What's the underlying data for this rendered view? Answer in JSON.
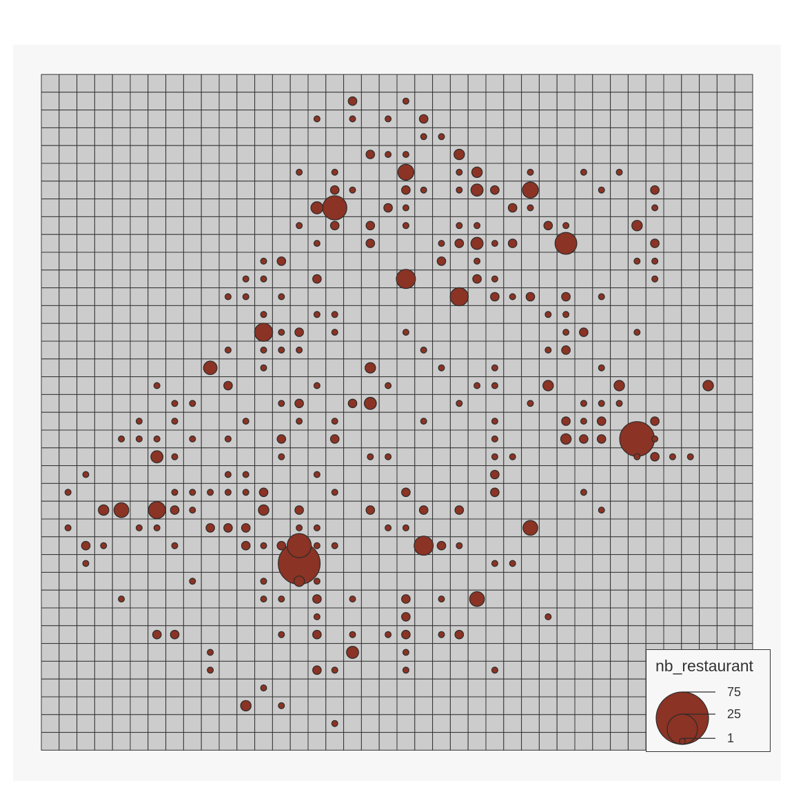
{
  "map": {
    "grid_cols": 40,
    "grid_rows": 38,
    "colors": {
      "panel": "#f7f7f7",
      "cell_fill": "#cccccc",
      "cell_stroke": "#333333",
      "symbol_fill": "#8b3324",
      "symbol_stroke": "#2b2b2b"
    },
    "legend": {
      "title": "nb_restaurant",
      "values": [
        75,
        25,
        1
      ],
      "labels": [
        "75",
        "25",
        "1"
      ]
    },
    "symbols": [
      {
        "col": 17,
        "row": 1,
        "value": 2
      },
      {
        "col": 20,
        "row": 1,
        "value": 1
      },
      {
        "col": 15,
        "row": 2,
        "value": 1
      },
      {
        "col": 17,
        "row": 2,
        "value": 1
      },
      {
        "col": 19,
        "row": 2,
        "value": 1
      },
      {
        "col": 21,
        "row": 2,
        "value": 2
      },
      {
        "col": 21,
        "row": 3,
        "value": 1
      },
      {
        "col": 22,
        "row": 3,
        "value": 1
      },
      {
        "col": 18,
        "row": 4,
        "value": 2
      },
      {
        "col": 19,
        "row": 4,
        "value": 1
      },
      {
        "col": 20,
        "row": 4,
        "value": 1
      },
      {
        "col": 23,
        "row": 4,
        "value": 3
      },
      {
        "col": 14,
        "row": 5,
        "value": 1
      },
      {
        "col": 16,
        "row": 5,
        "value": 1
      },
      {
        "col": 20,
        "row": 5,
        "value": 7
      },
      {
        "col": 23,
        "row": 5,
        "value": 1
      },
      {
        "col": 24,
        "row": 5,
        "value": 3
      },
      {
        "col": 27,
        "row": 5,
        "value": 1
      },
      {
        "col": 30,
        "row": 5,
        "value": 1
      },
      {
        "col": 32,
        "row": 5,
        "value": 1
      },
      {
        "col": 16,
        "row": 6,
        "value": 2
      },
      {
        "col": 17,
        "row": 6,
        "value": 1
      },
      {
        "col": 20,
        "row": 6,
        "value": 2
      },
      {
        "col": 21,
        "row": 6,
        "value": 1
      },
      {
        "col": 23,
        "row": 6,
        "value": 1
      },
      {
        "col": 24,
        "row": 6,
        "value": 4
      },
      {
        "col": 25,
        "row": 6,
        "value": 2
      },
      {
        "col": 27,
        "row": 6,
        "value": 7
      },
      {
        "col": 31,
        "row": 6,
        "value": 1
      },
      {
        "col": 34,
        "row": 6,
        "value": 2
      },
      {
        "col": 15,
        "row": 7,
        "value": 4
      },
      {
        "col": 16,
        "row": 7,
        "value": 16
      },
      {
        "col": 19,
        "row": 7,
        "value": 2
      },
      {
        "col": 20,
        "row": 7,
        "value": 1
      },
      {
        "col": 26,
        "row": 7,
        "value": 2
      },
      {
        "col": 27,
        "row": 7,
        "value": 1
      },
      {
        "col": 34,
        "row": 7,
        "value": 1
      },
      {
        "col": 14,
        "row": 8,
        "value": 1
      },
      {
        "col": 16,
        "row": 8,
        "value": 2
      },
      {
        "col": 18,
        "row": 8,
        "value": 2
      },
      {
        "col": 20,
        "row": 8,
        "value": 1
      },
      {
        "col": 23,
        "row": 8,
        "value": 1
      },
      {
        "col": 24,
        "row": 8,
        "value": 1
      },
      {
        "col": 28,
        "row": 8,
        "value": 2
      },
      {
        "col": 29,
        "row": 8,
        "value": 1
      },
      {
        "col": 33,
        "row": 8,
        "value": 3
      },
      {
        "col": 15,
        "row": 9,
        "value": 1
      },
      {
        "col": 18,
        "row": 9,
        "value": 2
      },
      {
        "col": 22,
        "row": 9,
        "value": 1
      },
      {
        "col": 23,
        "row": 9,
        "value": 2
      },
      {
        "col": 24,
        "row": 9,
        "value": 4
      },
      {
        "col": 25,
        "row": 9,
        "value": 1
      },
      {
        "col": 26,
        "row": 9,
        "value": 2
      },
      {
        "col": 29,
        "row": 9,
        "value": 13
      },
      {
        "col": 34,
        "row": 9,
        "value": 2
      },
      {
        "col": 12,
        "row": 10,
        "value": 1
      },
      {
        "col": 13,
        "row": 10,
        "value": 2
      },
      {
        "col": 22,
        "row": 10,
        "value": 2
      },
      {
        "col": 24,
        "row": 10,
        "value": 1
      },
      {
        "col": 33,
        "row": 10,
        "value": 1
      },
      {
        "col": 34,
        "row": 10,
        "value": 1
      },
      {
        "col": 11,
        "row": 11,
        "value": 1
      },
      {
        "col": 12,
        "row": 11,
        "value": 1
      },
      {
        "col": 15,
        "row": 11,
        "value": 2
      },
      {
        "col": 20,
        "row": 11,
        "value": 10
      },
      {
        "col": 24,
        "row": 11,
        "value": 2
      },
      {
        "col": 25,
        "row": 11,
        "value": 1
      },
      {
        "col": 34,
        "row": 11,
        "value": 1
      },
      {
        "col": 10,
        "row": 12,
        "value": 1
      },
      {
        "col": 11,
        "row": 12,
        "value": 1
      },
      {
        "col": 13,
        "row": 12,
        "value": 1
      },
      {
        "col": 23,
        "row": 12,
        "value": 9
      },
      {
        "col": 25,
        "row": 12,
        "value": 2
      },
      {
        "col": 26,
        "row": 12,
        "value": 1
      },
      {
        "col": 27,
        "row": 12,
        "value": 2
      },
      {
        "col": 29,
        "row": 12,
        "value": 2
      },
      {
        "col": 31,
        "row": 12,
        "value": 1
      },
      {
        "col": 12,
        "row": 13,
        "value": 1
      },
      {
        "col": 15,
        "row": 13,
        "value": 1
      },
      {
        "col": 16,
        "row": 13,
        "value": 1
      },
      {
        "col": 28,
        "row": 13,
        "value": 1
      },
      {
        "col": 29,
        "row": 13,
        "value": 1
      },
      {
        "col": 12,
        "row": 14,
        "value": 9
      },
      {
        "col": 13,
        "row": 14,
        "value": 1
      },
      {
        "col": 14,
        "row": 14,
        "value": 2
      },
      {
        "col": 16,
        "row": 14,
        "value": 1
      },
      {
        "col": 20,
        "row": 14,
        "value": 1
      },
      {
        "col": 29,
        "row": 14,
        "value": 1
      },
      {
        "col": 30,
        "row": 14,
        "value": 2
      },
      {
        "col": 33,
        "row": 14,
        "value": 1
      },
      {
        "col": 10,
        "row": 15,
        "value": 1
      },
      {
        "col": 12,
        "row": 15,
        "value": 1
      },
      {
        "col": 13,
        "row": 15,
        "value": 1
      },
      {
        "col": 14,
        "row": 15,
        "value": 1
      },
      {
        "col": 21,
        "row": 15,
        "value": 1
      },
      {
        "col": 28,
        "row": 15,
        "value": 1
      },
      {
        "col": 29,
        "row": 15,
        "value": 2
      },
      {
        "col": 9,
        "row": 16,
        "value": 5
      },
      {
        "col": 12,
        "row": 16,
        "value": 1
      },
      {
        "col": 18,
        "row": 16,
        "value": 3
      },
      {
        "col": 22,
        "row": 16,
        "value": 1
      },
      {
        "col": 25,
        "row": 16,
        "value": 1
      },
      {
        "col": 31,
        "row": 16,
        "value": 1
      },
      {
        "col": 6,
        "row": 17,
        "value": 1
      },
      {
        "col": 10,
        "row": 17,
        "value": 2
      },
      {
        "col": 15,
        "row": 17,
        "value": 1
      },
      {
        "col": 19,
        "row": 17,
        "value": 1
      },
      {
        "col": 24,
        "row": 17,
        "value": 1
      },
      {
        "col": 25,
        "row": 17,
        "value": 1
      },
      {
        "col": 28,
        "row": 17,
        "value": 3
      },
      {
        "col": 32,
        "row": 17,
        "value": 3
      },
      {
        "col": 37,
        "row": 17,
        "value": 3
      },
      {
        "col": 7,
        "row": 18,
        "value": 1
      },
      {
        "col": 8,
        "row": 18,
        "value": 1
      },
      {
        "col": 13,
        "row": 18,
        "value": 1
      },
      {
        "col": 14,
        "row": 18,
        "value": 2
      },
      {
        "col": 17,
        "row": 18,
        "value": 2
      },
      {
        "col": 18,
        "row": 18,
        "value": 4
      },
      {
        "col": 23,
        "row": 18,
        "value": 1
      },
      {
        "col": 27,
        "row": 18,
        "value": 1
      },
      {
        "col": 30,
        "row": 18,
        "value": 1
      },
      {
        "col": 31,
        "row": 18,
        "value": 1
      },
      {
        "col": 32,
        "row": 18,
        "value": 1
      },
      {
        "col": 5,
        "row": 19,
        "value": 1
      },
      {
        "col": 7,
        "row": 19,
        "value": 1
      },
      {
        "col": 11,
        "row": 19,
        "value": 1
      },
      {
        "col": 14,
        "row": 19,
        "value": 1
      },
      {
        "col": 16,
        "row": 19,
        "value": 1
      },
      {
        "col": 21,
        "row": 19,
        "value": 1
      },
      {
        "col": 25,
        "row": 19,
        "value": 1
      },
      {
        "col": 29,
        "row": 19,
        "value": 2
      },
      {
        "col": 30,
        "row": 19,
        "value": 1
      },
      {
        "col": 31,
        "row": 19,
        "value": 2
      },
      {
        "col": 34,
        "row": 19,
        "value": 2
      },
      {
        "col": 4,
        "row": 20,
        "value": 1
      },
      {
        "col": 5,
        "row": 20,
        "value": 1
      },
      {
        "col": 6,
        "row": 20,
        "value": 1
      },
      {
        "col": 8,
        "row": 20,
        "value": 1
      },
      {
        "col": 10,
        "row": 20,
        "value": 1
      },
      {
        "col": 13,
        "row": 20,
        "value": 2
      },
      {
        "col": 16,
        "row": 20,
        "value": 2
      },
      {
        "col": 25,
        "row": 20,
        "value": 1
      },
      {
        "col": 29,
        "row": 20,
        "value": 3
      },
      {
        "col": 30,
        "row": 20,
        "value": 2
      },
      {
        "col": 31,
        "row": 20,
        "value": 2
      },
      {
        "col": 33,
        "row": 20,
        "value": 33
      },
      {
        "col": 34,
        "row": 20,
        "value": 1
      },
      {
        "col": 6,
        "row": 21,
        "value": 4
      },
      {
        "col": 7,
        "row": 21,
        "value": 1
      },
      {
        "col": 13,
        "row": 21,
        "value": 1
      },
      {
        "col": 18,
        "row": 21,
        "value": 1
      },
      {
        "col": 19,
        "row": 21,
        "value": 1
      },
      {
        "col": 25,
        "row": 21,
        "value": 1
      },
      {
        "col": 26,
        "row": 21,
        "value": 1
      },
      {
        "col": 33,
        "row": 21,
        "value": 1
      },
      {
        "col": 34,
        "row": 21,
        "value": 2
      },
      {
        "col": 35,
        "row": 21,
        "value": 1
      },
      {
        "col": 36,
        "row": 21,
        "value": 1
      },
      {
        "col": 2,
        "row": 22,
        "value": 1
      },
      {
        "col": 10,
        "row": 22,
        "value": 1
      },
      {
        "col": 11,
        "row": 22,
        "value": 1
      },
      {
        "col": 15,
        "row": 22,
        "value": 1
      },
      {
        "col": 25,
        "row": 22,
        "value": 2
      },
      {
        "col": 1,
        "row": 23,
        "value": 1
      },
      {
        "col": 7,
        "row": 23,
        "value": 1
      },
      {
        "col": 8,
        "row": 23,
        "value": 1
      },
      {
        "col": 9,
        "row": 23,
        "value": 1
      },
      {
        "col": 10,
        "row": 23,
        "value": 1
      },
      {
        "col": 11,
        "row": 23,
        "value": 1
      },
      {
        "col": 12,
        "row": 23,
        "value": 2
      },
      {
        "col": 16,
        "row": 23,
        "value": 1
      },
      {
        "col": 20,
        "row": 23,
        "value": 2
      },
      {
        "col": 25,
        "row": 23,
        "value": 2
      },
      {
        "col": 30,
        "row": 23,
        "value": 1
      },
      {
        "col": 3,
        "row": 24,
        "value": 3
      },
      {
        "col": 4,
        "row": 24,
        "value": 6
      },
      {
        "col": 6,
        "row": 24,
        "value": 8
      },
      {
        "col": 7,
        "row": 24,
        "value": 2
      },
      {
        "col": 8,
        "row": 24,
        "value": 1
      },
      {
        "col": 12,
        "row": 24,
        "value": 3
      },
      {
        "col": 14,
        "row": 24,
        "value": 2
      },
      {
        "col": 18,
        "row": 24,
        "value": 2
      },
      {
        "col": 21,
        "row": 24,
        "value": 2
      },
      {
        "col": 23,
        "row": 24,
        "value": 2
      },
      {
        "col": 31,
        "row": 24,
        "value": 1
      },
      {
        "col": 1,
        "row": 25,
        "value": 1
      },
      {
        "col": 5,
        "row": 25,
        "value": 1
      },
      {
        "col": 6,
        "row": 25,
        "value": 1
      },
      {
        "col": 9,
        "row": 25,
        "value": 2
      },
      {
        "col": 10,
        "row": 25,
        "value": 2
      },
      {
        "col": 11,
        "row": 25,
        "value": 2
      },
      {
        "col": 14,
        "row": 25,
        "value": 1
      },
      {
        "col": 15,
        "row": 25,
        "value": 1
      },
      {
        "col": 19,
        "row": 25,
        "value": 1
      },
      {
        "col": 20,
        "row": 25,
        "value": 1
      },
      {
        "col": 27,
        "row": 25,
        "value": 6
      },
      {
        "col": 2,
        "row": 26,
        "value": 2
      },
      {
        "col": 3,
        "row": 26,
        "value": 1
      },
      {
        "col": 7,
        "row": 26,
        "value": 1
      },
      {
        "col": 11,
        "row": 26,
        "value": 2
      },
      {
        "col": 12,
        "row": 26,
        "value": 1
      },
      {
        "col": 13,
        "row": 26,
        "value": 2
      },
      {
        "col": 14,
        "row": 26,
        "value": 16
      },
      {
        "col": 15,
        "row": 26,
        "value": 1
      },
      {
        "col": 16,
        "row": 26,
        "value": 1
      },
      {
        "col": 21,
        "row": 26,
        "value": 10
      },
      {
        "col": 22,
        "row": 26,
        "value": 2
      },
      {
        "col": 23,
        "row": 26,
        "value": 1
      },
      {
        "col": 2,
        "row": 27,
        "value": 1
      },
      {
        "col": 14,
        "row": 27,
        "value": 48
      },
      {
        "col": 25,
        "row": 27,
        "value": 1
      },
      {
        "col": 26,
        "row": 27,
        "value": 1
      },
      {
        "col": 8,
        "row": 28,
        "value": 1
      },
      {
        "col": 12,
        "row": 28,
        "value": 1
      },
      {
        "col": 14,
        "row": 28,
        "value": 3
      },
      {
        "col": 15,
        "row": 28,
        "value": 1
      },
      {
        "col": 4,
        "row": 29,
        "value": 1
      },
      {
        "col": 12,
        "row": 29,
        "value": 1
      },
      {
        "col": 13,
        "row": 29,
        "value": 1
      },
      {
        "col": 15,
        "row": 29,
        "value": 2
      },
      {
        "col": 17,
        "row": 29,
        "value": 1
      },
      {
        "col": 20,
        "row": 29,
        "value": 2
      },
      {
        "col": 22,
        "row": 29,
        "value": 1
      },
      {
        "col": 24,
        "row": 29,
        "value": 6
      },
      {
        "col": 15,
        "row": 30,
        "value": 1
      },
      {
        "col": 20,
        "row": 30,
        "value": 2
      },
      {
        "col": 28,
        "row": 30,
        "value": 1
      },
      {
        "col": 6,
        "row": 31,
        "value": 2
      },
      {
        "col": 7,
        "row": 31,
        "value": 2
      },
      {
        "col": 13,
        "row": 31,
        "value": 1
      },
      {
        "col": 15,
        "row": 31,
        "value": 2
      },
      {
        "col": 17,
        "row": 31,
        "value": 1
      },
      {
        "col": 19,
        "row": 31,
        "value": 1
      },
      {
        "col": 20,
        "row": 31,
        "value": 2
      },
      {
        "col": 22,
        "row": 31,
        "value": 1
      },
      {
        "col": 23,
        "row": 31,
        "value": 2
      },
      {
        "col": 9,
        "row": 32,
        "value": 1
      },
      {
        "col": 17,
        "row": 32,
        "value": 4
      },
      {
        "col": 20,
        "row": 32,
        "value": 1
      },
      {
        "col": 9,
        "row": 33,
        "value": 1
      },
      {
        "col": 15,
        "row": 33,
        "value": 2
      },
      {
        "col": 16,
        "row": 33,
        "value": 1
      },
      {
        "col": 20,
        "row": 33,
        "value": 1
      },
      {
        "col": 25,
        "row": 33,
        "value": 1
      },
      {
        "col": 12,
        "row": 34,
        "value": 1
      },
      {
        "col": 11,
        "row": 35,
        "value": 3
      },
      {
        "col": 13,
        "row": 35,
        "value": 1
      },
      {
        "col": 16,
        "row": 36,
        "value": 1
      }
    ]
  }
}
